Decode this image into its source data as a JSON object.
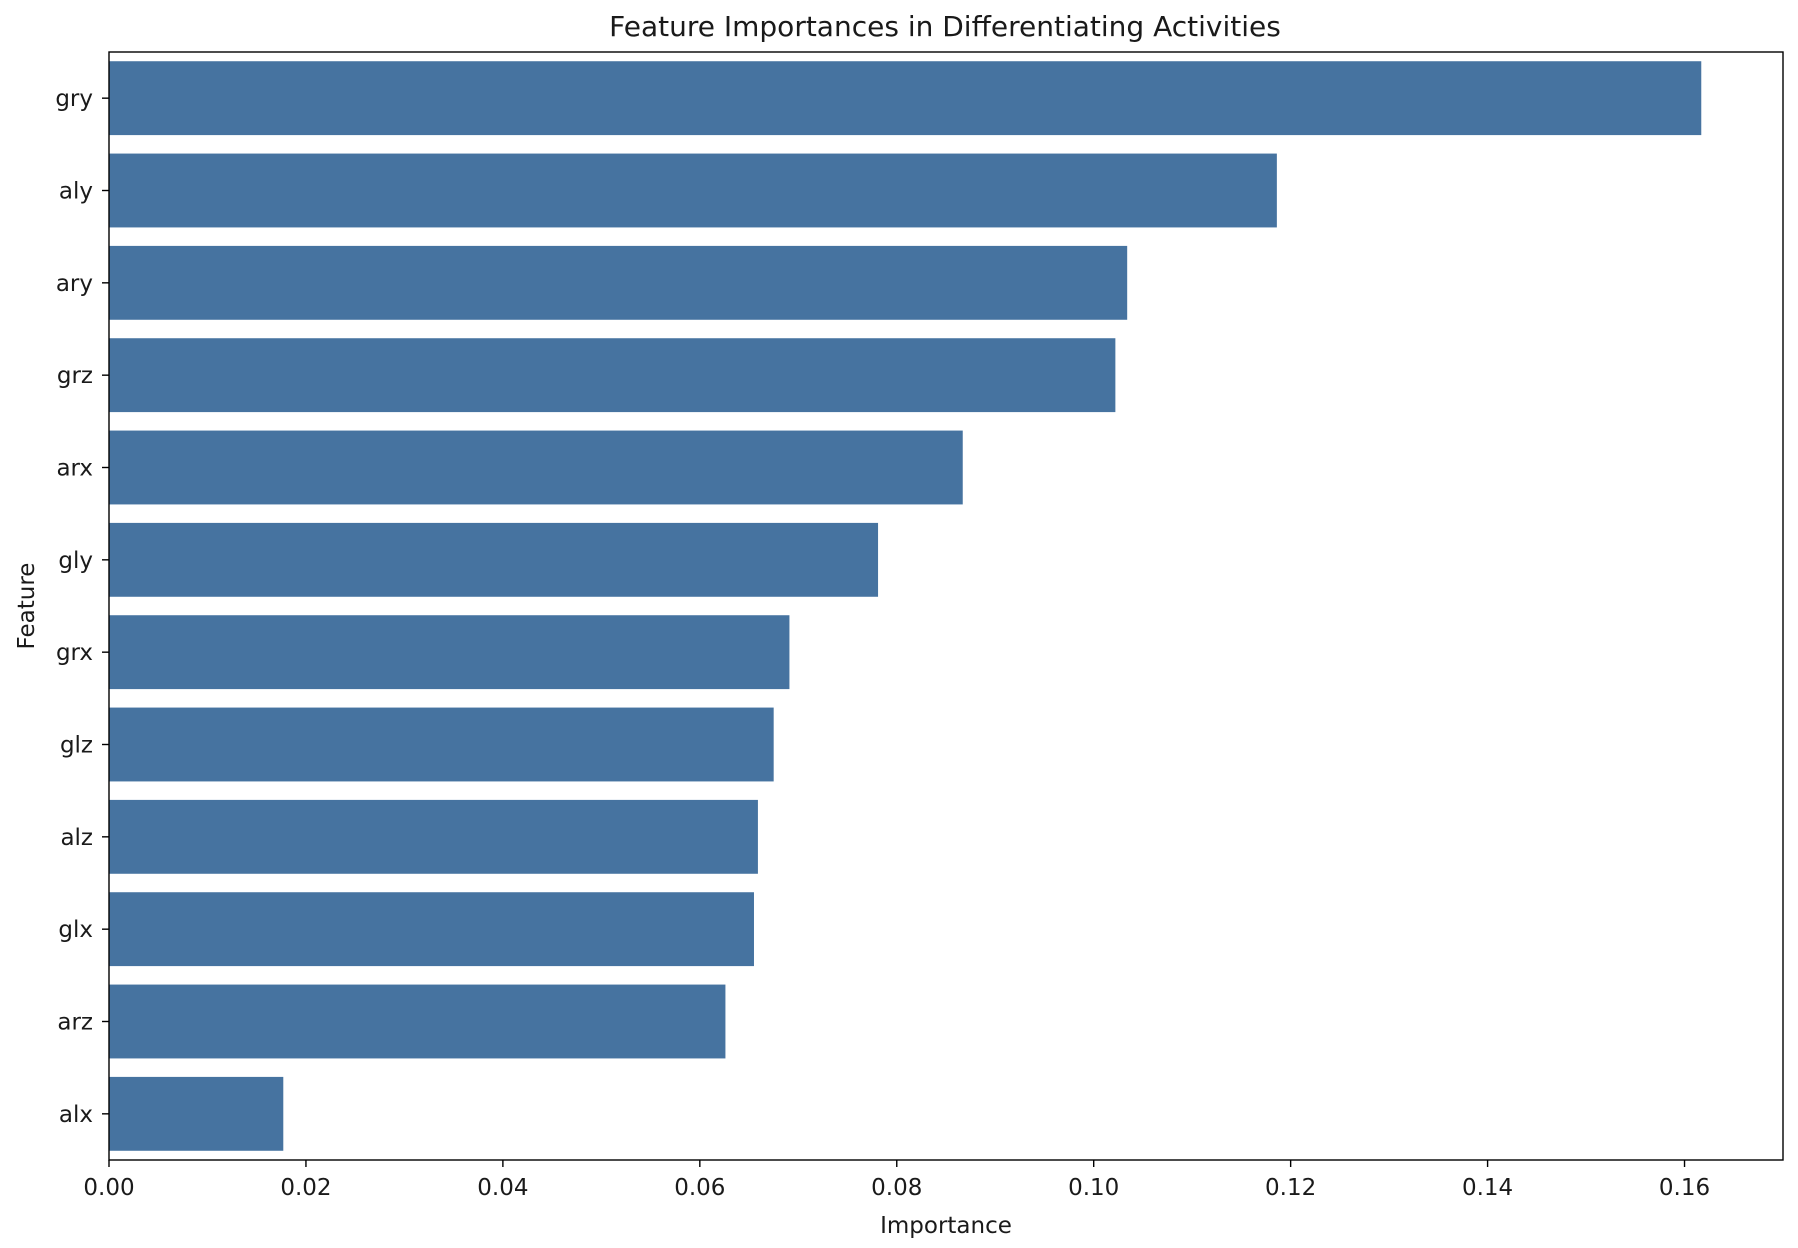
{
  "chart_data": {
    "type": "bar",
    "orientation": "horizontal",
    "title": "Feature Importances in Differentiating Activities",
    "xlabel": "Importance",
    "ylabel": "Feature",
    "categories": [
      "gry",
      "aly",
      "ary",
      "grz",
      "arx",
      "gly",
      "grx",
      "glz",
      "alz",
      "glx",
      "arz",
      "alx"
    ],
    "values": [
      0.1617,
      0.1186,
      0.1034,
      0.1022,
      0.0867,
      0.0781,
      0.0691,
      0.0675,
      0.0659,
      0.0655,
      0.0626,
      0.0177
    ],
    "xlim": [
      0.0,
      0.17
    ],
    "xticks": [
      "0.00",
      "0.02",
      "0.04",
      "0.06",
      "0.08",
      "0.10",
      "0.12",
      "0.14",
      "0.16"
    ],
    "grid": false,
    "legend": "none",
    "bar_color": "#4673A0"
  }
}
